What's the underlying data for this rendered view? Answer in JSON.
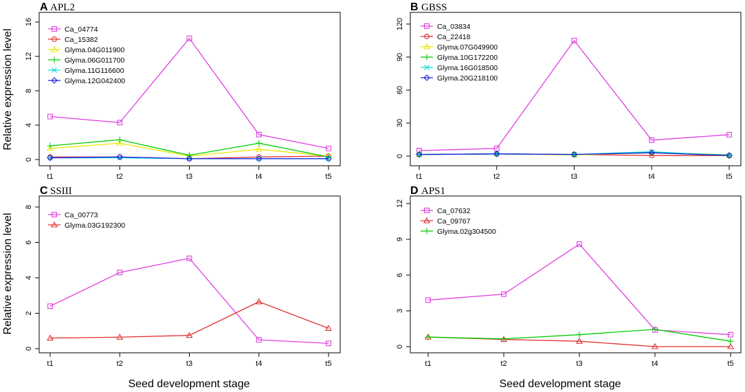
{
  "figure": {
    "y_axis_title": "Relative expression level",
    "x_axis_title": "Seed development stage"
  },
  "chart_data": [
    {
      "type": "line",
      "letter": "A",
      "title": "APL2",
      "categories": [
        "t1",
        "t2",
        "t3",
        "t4",
        "t5"
      ],
      "ylim": [
        0,
        16
      ],
      "yticks": [
        0,
        4,
        8,
        12,
        16
      ],
      "series": [
        {
          "name": "Ca_04774",
          "color": "#e040e0",
          "marker": "square",
          "values": [
            5.0,
            4.3,
            14.1,
            2.9,
            1.3
          ]
        },
        {
          "name": "Ca_15382",
          "color": "#e03030",
          "marker": "circle",
          "values": [
            0.3,
            0.3,
            0.1,
            0.3,
            0.4
          ]
        },
        {
          "name": "Glyma.04G011900",
          "color": "#e8e800",
          "marker": "triangle",
          "values": [
            1.3,
            1.9,
            0.4,
            1.2,
            0.4
          ]
        },
        {
          "name": "Glyma.06G011700",
          "color": "#00cc00",
          "marker": "plus",
          "values": [
            1.6,
            2.3,
            0.5,
            1.9,
            0.3
          ]
        },
        {
          "name": "Glyma.11G116600",
          "color": "#00dddd",
          "marker": "cross",
          "values": [
            0.2,
            0.2,
            0.1,
            0.1,
            0.1
          ]
        },
        {
          "name": "Glyma.12G042400",
          "color": "#2020e0",
          "marker": "diamond",
          "values": [
            0.2,
            0.3,
            0.1,
            0.1,
            0.1
          ]
        }
      ]
    },
    {
      "type": "line",
      "letter": "B",
      "title": "GBSS",
      "categories": [
        "t1",
        "t2",
        "t3",
        "t4",
        "t5"
      ],
      "ylim": [
        0,
        120
      ],
      "yticks": [
        0,
        30,
        60,
        90,
        120
      ],
      "series": [
        {
          "name": "Ca_03834",
          "color": "#e040e0",
          "marker": "square",
          "values": [
            5.0,
            7.0,
            105.0,
            14.5,
            19.5
          ]
        },
        {
          "name": "Ca_22418",
          "color": "#e03030",
          "marker": "circle",
          "values": [
            1.5,
            2.0,
            1.5,
            0.5,
            0.5
          ]
        },
        {
          "name": "Glyma.07G049900",
          "color": "#e8e800",
          "marker": "triangle",
          "values": [
            1.5,
            2.0,
            1.0,
            3.0,
            0.5
          ]
        },
        {
          "name": "Glyma.10G172200",
          "color": "#00cc00",
          "marker": "plus",
          "values": [
            1.5,
            2.0,
            1.5,
            3.5,
            1.0
          ]
        },
        {
          "name": "Glyma.16G018500",
          "color": "#00dddd",
          "marker": "cross",
          "values": [
            1.5,
            2.0,
            1.5,
            4.0,
            0.5
          ]
        },
        {
          "name": "Glyma.20G218100",
          "color": "#2020e0",
          "marker": "diamond",
          "values": [
            1.5,
            2.0,
            1.5,
            3.0,
            0.5
          ]
        }
      ]
    },
    {
      "type": "line",
      "letter": "C",
      "title": "SSIII",
      "categories": [
        "t1",
        "t2",
        "t3",
        "t4",
        "t5"
      ],
      "ylim": [
        0,
        8
      ],
      "yticks": [
        0,
        2,
        4,
        6,
        8
      ],
      "series": [
        {
          "name": "Ca_00773",
          "color": "#e040e0",
          "marker": "square",
          "values": [
            2.4,
            4.3,
            5.1,
            0.5,
            0.3
          ]
        },
        {
          "name": "Glyma.03G192300",
          "color": "#e03030",
          "marker": "triangle",
          "values": [
            0.6,
            0.65,
            0.75,
            2.65,
            1.15
          ]
        }
      ]
    },
    {
      "type": "line",
      "letter": "D",
      "title": "APS1",
      "categories": [
        "t1",
        "t2",
        "t3",
        "t4",
        "t5"
      ],
      "ylim": [
        0,
        12
      ],
      "yticks": [
        0,
        3,
        6,
        9,
        12
      ],
      "series": [
        {
          "name": "Ca_07632",
          "color": "#e040e0",
          "marker": "square",
          "values": [
            3.9,
            4.4,
            8.6,
            1.4,
            1.0
          ]
        },
        {
          "name": "Ca_09767",
          "color": "#e03030",
          "marker": "triangle",
          "values": [
            0.8,
            0.6,
            0.45,
            0.0,
            0.0
          ]
        },
        {
          "name": "Glyma.02g304500",
          "color": "#00cc00",
          "marker": "plus",
          "values": [
            0.8,
            0.65,
            1.0,
            1.45,
            0.45
          ]
        }
      ]
    }
  ]
}
